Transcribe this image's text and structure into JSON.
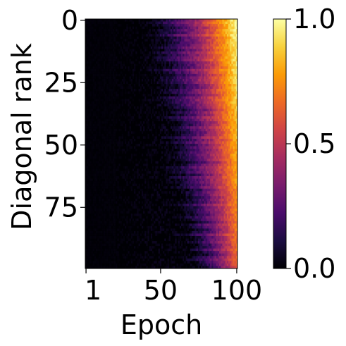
{
  "chart_data": {
    "type": "heatmap",
    "title": "",
    "xlabel": "Epoch",
    "ylabel": "Diagonal rank",
    "x_range": [
      1,
      100
    ],
    "y_range": [
      0,
      99
    ],
    "x_ticks": [
      1,
      50,
      100
    ],
    "x_tick_labels": [
      "1",
      "50",
      "100"
    ],
    "y_ticks": [
      0,
      25,
      50,
      75
    ],
    "y_tick_labels": [
      "0",
      "25",
      "50",
      "75"
    ],
    "colorbar": {
      "range": [
        0.0,
        1.0
      ],
      "ticks": [
        0.0,
        0.5,
        1.0
      ],
      "tick_labels": [
        "0.0",
        "0.5",
        "1.0"
      ],
      "colormap": "inferno"
    },
    "value_trend": "values near 0.0 for early epochs, rising toward 1.0 near epoch 100; lower diagonal ranks reach high values earliest, with near 1.0 at ranks 0-25 by epoch ~90",
    "grid": false,
    "legend": "colorbar-right"
  },
  "colors": {
    "colormap_stops": [
      "#000004",
      "#1b0c41",
      "#4a0c6b",
      "#781c6d",
      "#a52c60",
      "#cf4446",
      "#ed6925",
      "#fb9b06",
      "#f7d13d",
      "#fcffa4"
    ]
  }
}
